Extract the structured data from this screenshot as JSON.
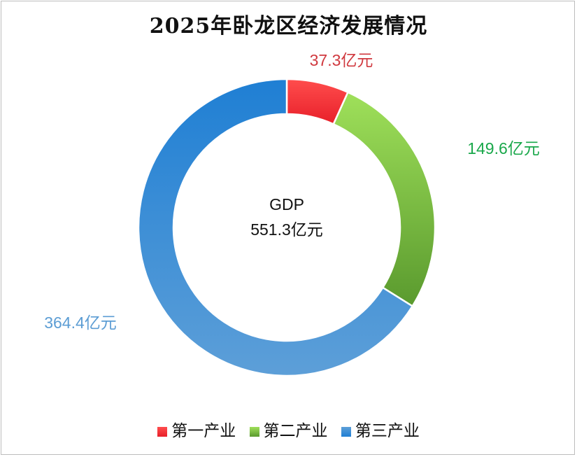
{
  "chart_data": {
    "type": "pie",
    "title": "2025年卧龙区经济发展情况",
    "center_label": "GDP",
    "center_value": "551.3亿元",
    "slices": [
      {
        "name": "第一产业",
        "value": 37.3,
        "label": "37.3亿元",
        "color": "#e8202a",
        "color_light": "#ff4d4d",
        "label_color": "#d0393f"
      },
      {
        "name": "第二产业",
        "value": 149.6,
        "label": "149.6亿元",
        "color": "#5a9a2e",
        "color_light": "#9fe05a",
        "label_color": "#1aa84b"
      },
      {
        "name": "第三产业",
        "value": 364.4,
        "label": "364.4亿元",
        "color": "#1f7fd4",
        "color_light": "#5d9fd8",
        "label_color": "#5c9dd4"
      }
    ],
    "legend": {
      "position": "bottom"
    }
  }
}
